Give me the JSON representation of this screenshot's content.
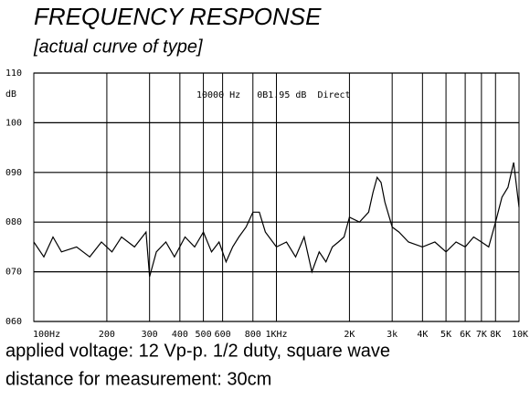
{
  "chart_data": {
    "type": "line",
    "title": "FREQUENCY RESPONSE",
    "subtitle": "[actual curve of type]",
    "y_unit": "dB",
    "annotation": "10000 Hz   0B1.95 dB  Direct",
    "notes": [
      "applied voltage: 12 Vp-p. 1/2 duty, square wave",
      "distance for measurement: 30cm"
    ],
    "x_scale": "log",
    "xlim": [
      100,
      10000
    ],
    "xticks": [
      {
        "value": 100,
        "label": "100Hz"
      },
      200,
      300,
      400,
      500,
      600,
      800,
      {
        "value": 1000,
        "label": "1KHz"
      },
      {
        "value": 2000,
        "label": "2K"
      },
      {
        "value": 3000,
        "label": "3k"
      },
      {
        "value": 4000,
        "label": "4K"
      },
      {
        "value": 5000,
        "label": "5K"
      },
      {
        "value": 6000,
        "label": "6K"
      },
      {
        "value": 7000,
        "label": "7K"
      },
      {
        "value": 8000,
        "label": "8K"
      },
      {
        "value": 10000,
        "label": "10K"
      }
    ],
    "ylim": [
      60,
      110
    ],
    "yticks": [
      {
        "value": 60,
        "label": "060"
      },
      {
        "value": 70,
        "label": "070"
      },
      {
        "value": 80,
        "label": "080"
      },
      {
        "value": 90,
        "label": "090"
      },
      100,
      110
    ],
    "grid": true,
    "color": "#000000",
    "x": [
      100,
      110,
      120,
      130,
      150,
      170,
      190,
      210,
      230,
      260,
      290,
      300,
      320,
      350,
      380,
      420,
      460,
      500,
      540,
      580,
      620,
      660,
      700,
      750,
      800,
      850,
      900,
      1000,
      1100,
      1200,
      1300,
      1400,
      1500,
      1600,
      1700,
      1800,
      1900,
      2000,
      2200,
      2400,
      2500,
      2600,
      2700,
      2800,
      3000,
      3200,
      3500,
      4000,
      4500,
      5000,
      5500,
      6000,
      6500,
      7000,
      7500,
      8000,
      8500,
      9000,
      9500,
      10000
    ],
    "values": [
      76,
      73,
      77,
      74,
      75,
      73,
      76,
      74,
      77,
      75,
      78,
      69,
      74,
      76,
      73,
      77,
      75,
      78,
      74,
      76,
      72,
      75,
      77,
      79,
      82,
      82,
      78,
      75,
      76,
      73,
      77,
      70,
      74,
      72,
      75,
      76,
      77,
      81,
      80,
      82,
      86,
      89,
      88,
      84,
      79,
      78,
      76,
      75,
      76,
      74,
      76,
      75,
      77,
      76,
      75,
      80,
      85,
      87,
      92,
      83
    ]
  }
}
